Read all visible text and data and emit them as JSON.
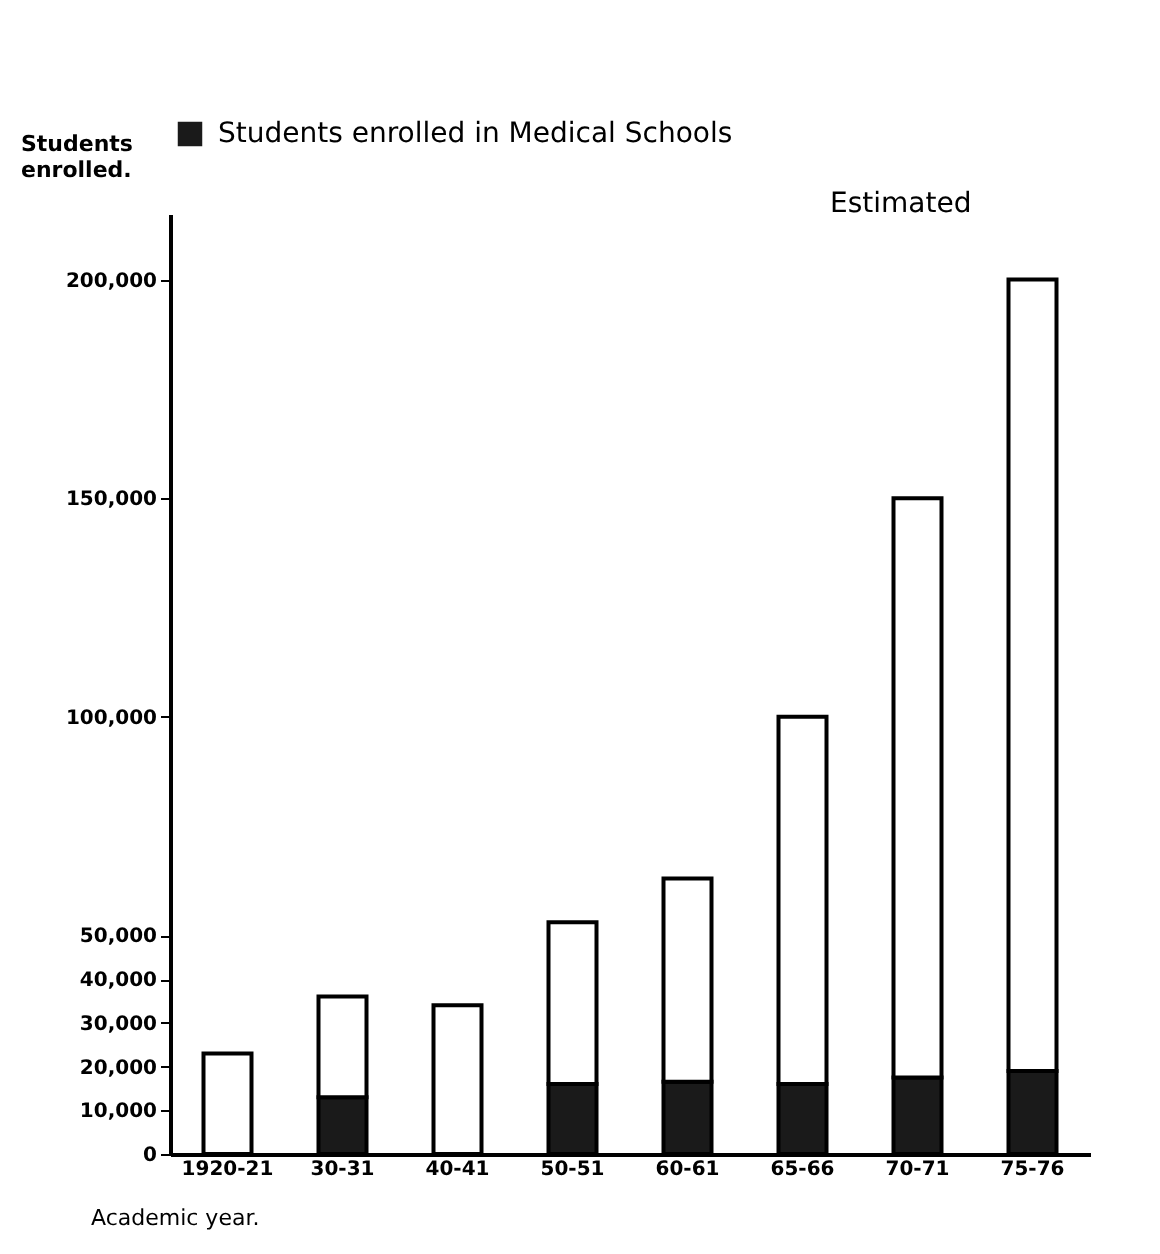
{
  "chart_data": {
    "type": "bar",
    "stacked": true,
    "categories": [
      "1920-21",
      "30-31",
      "40-41",
      "50-51",
      "60-61",
      "65-66",
      "70-71",
      "75-76"
    ],
    "series": [
      {
        "name": "Students enrolled in Medical Schools",
        "color": "#1a1a1a",
        "values": [
          null,
          13000,
          null,
          16000,
          16500,
          16000,
          17500,
          19000
        ]
      },
      {
        "color": "#ffffff",
        "values": [
          23000,
          23000,
          34000,
          37000,
          46500,
          84000,
          132500,
          181000
        ]
      }
    ],
    "ylabel": "Students enrolled.",
    "xlabel": "Academic year.",
    "ylim": [
      0,
      215000
    ],
    "yticks": [
      0,
      {
        "value": 10000,
        "label": "10,000"
      },
      {
        "value": 20000,
        "label": "20,000"
      },
      {
        "value": 30000,
        "label": "30,000"
      },
      {
        "value": 40000,
        "label": "40,000"
      },
      {
        "value": 50000,
        "label": "50,000"
      },
      {
        "value": 100000,
        "label": "100,000"
      },
      {
        "value": 150000,
        "label": "150,000"
      },
      {
        "value": 200000,
        "label": "200,000"
      }
    ],
    "annotations": [
      "Estimated"
    ],
    "legend": "top",
    "grid": false
  }
}
